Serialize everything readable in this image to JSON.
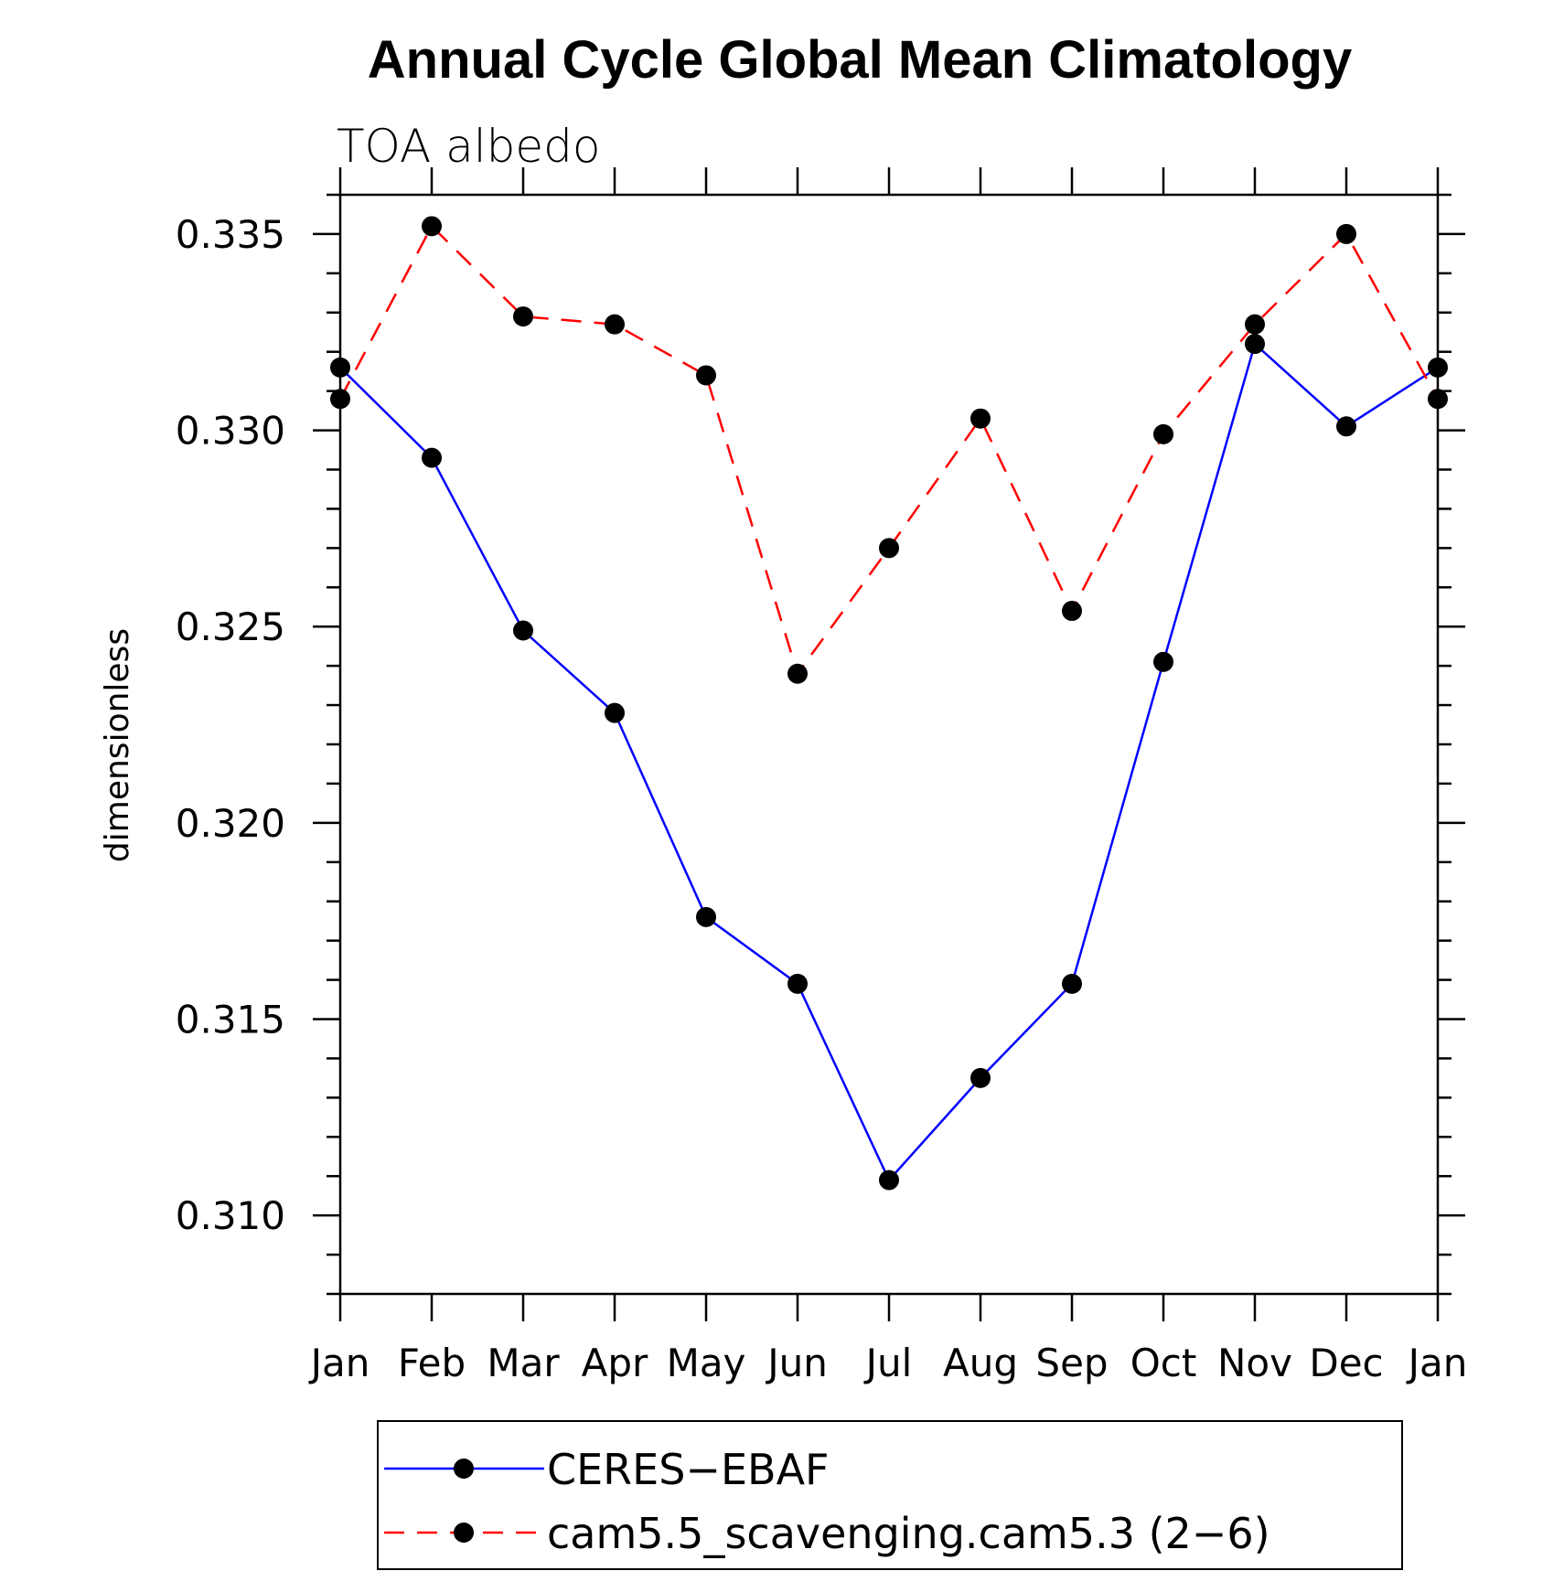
{
  "chart_data": {
    "type": "line",
    "title": "Annual Cycle Global Mean Climatology",
    "subtitle": "TOA albedo",
    "xlabel": "",
    "ylabel": "dimensionless",
    "categories": [
      "Jan",
      "Feb",
      "Mar",
      "Apr",
      "May",
      "Jun",
      "Jul",
      "Aug",
      "Sep",
      "Oct",
      "Nov",
      "Dec",
      "Jan"
    ],
    "ylim": [
      0.308,
      0.336
    ],
    "yticks": [
      0.31,
      0.315,
      0.32,
      0.325,
      0.33,
      0.335
    ],
    "ytick_labels": [
      "0.310",
      "0.315",
      "0.320",
      "0.325",
      "0.330",
      "0.335"
    ],
    "ytick_minor_step": 0.001,
    "series": [
      {
        "name": "CERES-EBAF",
        "color": "#0000ff",
        "dash": "solid",
        "marker": "filled-circle",
        "values": [
          0.3316,
          0.3293,
          0.3249,
          0.3228,
          0.3176,
          0.3159,
          0.3109,
          0.3135,
          0.3159,
          0.3241,
          0.3322,
          0.3301,
          0.3316
        ]
      },
      {
        "name": "cam5.5_scavenging.cam5.3 (2-6)",
        "color": "#ff0000",
        "dash": "dashed",
        "marker": "filled-circle",
        "values": [
          0.3308,
          0.3352,
          0.3329,
          0.3327,
          0.3314,
          0.3238,
          0.327,
          0.3303,
          0.3254,
          0.3299,
          0.3327,
          0.335,
          0.3308
        ]
      }
    ],
    "legend": {
      "position": "bottom",
      "entries": [
        "CERES−EBAF",
        "cam5.5_scavenging.cam5.3 (2−6)"
      ]
    }
  }
}
